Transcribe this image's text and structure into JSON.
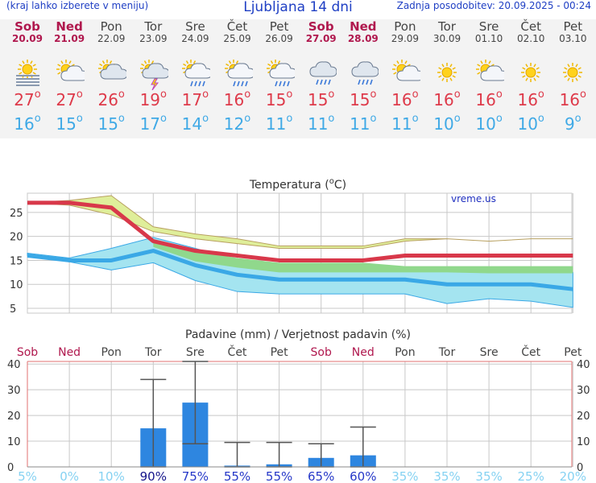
{
  "header": {
    "hint": "(kraj lahko izberete v meniju)",
    "title": "Ljubljana 14 dni",
    "updated": "Zadnja posodobitev: 20.09.2025 - 00:24"
  },
  "days": [
    {
      "name": "Sob",
      "date": "20.09",
      "weekend": true,
      "icon": "fog-sun-icon",
      "tmax": "27",
      "tmin": "16"
    },
    {
      "name": "Ned",
      "date": "21.09",
      "weekend": true,
      "icon": "partly-cloudy-icon",
      "tmax": "27",
      "tmin": "15"
    },
    {
      "name": "Pon",
      "date": "22.09",
      "weekend": false,
      "icon": "mostly-cloudy-icon",
      "tmax": "26",
      "tmin": "15"
    },
    {
      "name": "Tor",
      "date": "23.09",
      "weekend": false,
      "icon": "thunderstorm-icon",
      "tmax": "19",
      "tmin": "17"
    },
    {
      "name": "Sre",
      "date": "24.09",
      "weekend": false,
      "icon": "sun-rain-icon",
      "tmax": "17",
      "tmin": "14"
    },
    {
      "name": "Čet",
      "date": "25.09",
      "weekend": false,
      "icon": "sun-rain-icon",
      "tmax": "16",
      "tmin": "12"
    },
    {
      "name": "Pet",
      "date": "26.09",
      "weekend": false,
      "icon": "sun-rain-icon",
      "tmax": "15",
      "tmin": "11"
    },
    {
      "name": "Sob",
      "date": "27.09",
      "weekend": true,
      "icon": "rain-cloud-icon",
      "tmax": "15",
      "tmin": "11"
    },
    {
      "name": "Ned",
      "date": "28.09",
      "weekend": true,
      "icon": "rain-cloud-icon",
      "tmax": "15",
      "tmin": "11"
    },
    {
      "name": "Pon",
      "date": "29.09",
      "weekend": false,
      "icon": "partly-cloudy-icon",
      "tmax": "16",
      "tmin": "11"
    },
    {
      "name": "Tor",
      "date": "30.09",
      "weekend": false,
      "icon": "sun-icon",
      "tmax": "16",
      "tmin": "10"
    },
    {
      "name": "Sre",
      "date": "01.10",
      "weekend": false,
      "icon": "partly-cloudy-icon",
      "tmax": "16",
      "tmin": "10"
    },
    {
      "name": "Čet",
      "date": "02.10",
      "weekend": false,
      "icon": "sun-icon",
      "tmax": "16",
      "tmin": "10"
    },
    {
      "name": "Pet",
      "date": "03.10",
      "weekend": false,
      "icon": "sun-icon",
      "tmax": "16",
      "tmin": "9"
    }
  ],
  "deg_symbol": "o",
  "colors": {
    "max_line": "#d8384a",
    "min_line": "#3aa8e6",
    "max_band": "#dfee9a",
    "min_band": "#a4e4f0",
    "overlap_band": "#90d88c",
    "bar": "#2e86e0",
    "grid": "#c8c8c8",
    "weekend": "#b0184e",
    "prob_high": "#1e1ea8",
    "prob_low": "#86d2f2",
    "axis_red": "#e07070"
  },
  "chart_data": [
    {
      "type": "line",
      "title": "Temperatura (oC)",
      "title_text": "Temperatura (",
      "title_deg": "o",
      "title_unit": "C)",
      "watermark": "vreme.us",
      "ylim": [
        4,
        29
      ],
      "yticks": [
        5,
        10,
        15,
        20,
        25
      ],
      "series": [
        {
          "key": "max",
          "values": [
            27,
            27,
            26,
            19,
            17,
            16,
            15,
            15,
            15,
            16,
            16,
            16,
            16,
            16
          ],
          "band_low": [
            27,
            26.5,
            24.5,
            21,
            19.5,
            18.5,
            17.5,
            17.5,
            17.5,
            19,
            19.5,
            19,
            19.5,
            19.5
          ],
          "band_high": [
            27,
            27.5,
            28.5,
            22,
            20.5,
            19.5,
            18,
            18,
            18,
            19.5,
            19.5,
            19,
            19.5,
            19.5
          ]
        },
        {
          "key": "min",
          "values": [
            16,
            15,
            15,
            17,
            14,
            12,
            11,
            11,
            11,
            11,
            10,
            10,
            10,
            9
          ],
          "band_low": [
            16,
            14.7,
            13,
            14.5,
            10.8,
            8.5,
            8,
            8,
            8,
            8,
            6,
            7,
            6.5,
            5.2
          ],
          "band_high": [
            16.5,
            15.5,
            17.5,
            19.8,
            17.5,
            15,
            14,
            14,
            14,
            13.5,
            13,
            13,
            13,
            12.5
          ]
        }
      ],
      "overlap_high": [
        null,
        null,
        null,
        19.2,
        17,
        15.5,
        14.5,
        14.5,
        14.5,
        13.8,
        13.8,
        13.8,
        13.8,
        13.8
      ],
      "overlap_low": [
        null,
        null,
        null,
        17.8,
        14.8,
        13.5,
        12.5,
        12.5,
        12.5,
        12.5,
        12.5,
        12.3,
        12.3,
        12.3
      ]
    },
    {
      "type": "bar",
      "title": "Padavine (mm) / Verjetnost padavin (%)",
      "categories": [
        "Sob",
        "Ned",
        "Pon",
        "Tor",
        "Sre",
        "Čet",
        "Pet",
        "Sob",
        "Ned",
        "Pon",
        "Tor",
        "Sre",
        "Čet",
        "Pet"
      ],
      "weekend": [
        true,
        true,
        false,
        false,
        false,
        false,
        false,
        true,
        true,
        false,
        false,
        false,
        false,
        false
      ],
      "values": [
        0,
        0,
        0,
        15,
        25,
        0.5,
        1,
        3.5,
        4.5,
        0,
        0,
        0,
        0,
        0
      ],
      "err_low": [
        null,
        null,
        null,
        0,
        9,
        0,
        0,
        0,
        0,
        null,
        null,
        null,
        null,
        null
      ],
      "err_high": [
        null,
        null,
        null,
        34,
        41,
        9.5,
        9.5,
        9,
        15.5,
        null,
        null,
        null,
        null,
        null
      ],
      "probability": [
        "5%",
        "0%",
        "10%",
        "90%",
        "75%",
        "55%",
        "55%",
        "65%",
        "60%",
        "35%",
        "35%",
        "35%",
        "25%",
        "20%"
      ],
      "probability_values": [
        5,
        0,
        10,
        90,
        75,
        55,
        55,
        65,
        60,
        35,
        35,
        35,
        25,
        20
      ],
      "ylim": [
        0,
        41
      ],
      "yticks": [
        0,
        10,
        20,
        30,
        40
      ]
    }
  ]
}
